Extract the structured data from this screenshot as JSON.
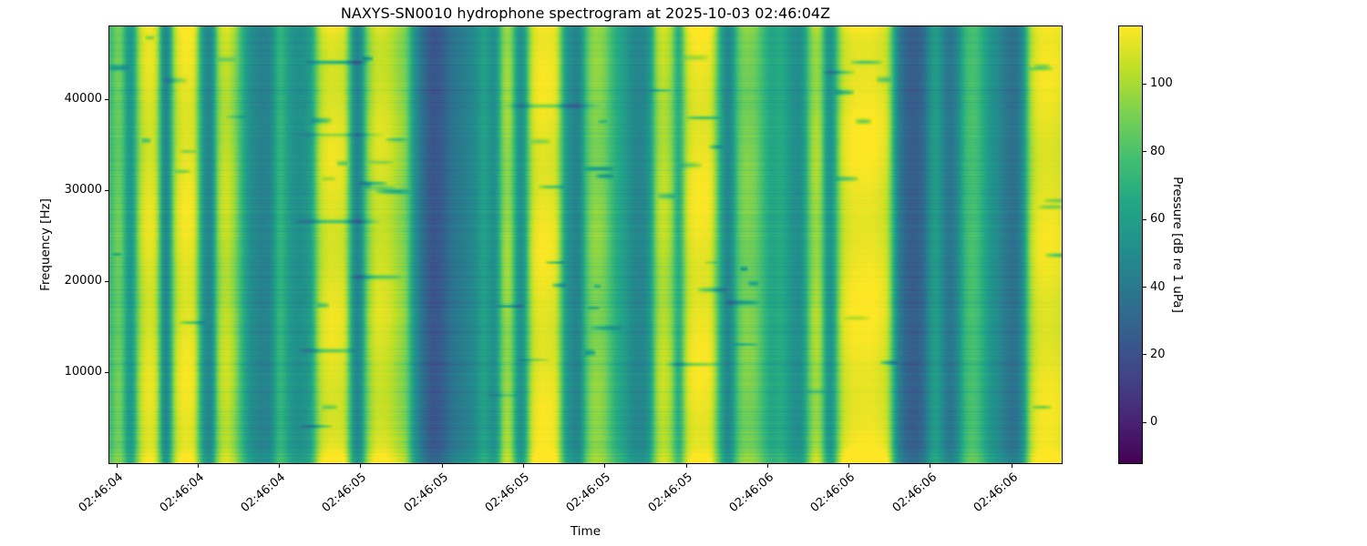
{
  "chart_data": {
    "type": "heatmap",
    "subtype": "spectrogram",
    "title": "NAXYS-SN0010 hydrophone spectrogram at 2025-10-03 02:46:04Z",
    "xlabel": "Time",
    "ylabel": "Frequency [Hz]",
    "colorbar_label": "Pressure [dB re 1 uPa]",
    "ylim": [
      0,
      48000
    ],
    "clim": [
      -12,
      117
    ],
    "grid": false,
    "y_ticks": {
      "values": [
        10000,
        20000,
        30000,
        40000
      ],
      "labels": [
        "10000",
        "20000",
        "30000",
        "40000"
      ]
    },
    "x_ticks": {
      "fractions": [
        0.0077,
        0.0931,
        0.1786,
        0.264,
        0.3495,
        0.4349,
        0.5204,
        0.6058,
        0.6913,
        0.7767,
        0.8622,
        0.9477
      ],
      "labels": [
        "02:46:04",
        "02:46:04",
        "02:46:04",
        "02:46:05",
        "02:46:05",
        "02:46:05",
        "02:46:05",
        "02:46:05",
        "02:46:06",
        "02:46:06",
        "02:46:06",
        "02:46:06"
      ]
    },
    "colorbar_ticks": {
      "values": [
        0,
        20,
        40,
        60,
        80,
        100
      ],
      "labels": [
        "0",
        "20",
        "40",
        "60",
        "80",
        "100"
      ]
    },
    "colormap": {
      "name": "viridis",
      "stops": [
        {
          "pos": 0.0,
          "color": "#440154"
        },
        {
          "pos": 0.1,
          "color": "#482475"
        },
        {
          "pos": 0.2,
          "color": "#414487"
        },
        {
          "pos": 0.3,
          "color": "#355f8d"
        },
        {
          "pos": 0.4,
          "color": "#2a788e"
        },
        {
          "pos": 0.5,
          "color": "#21918c"
        },
        {
          "pos": 0.6,
          "color": "#22a884"
        },
        {
          "pos": 0.7,
          "color": "#44bf70"
        },
        {
          "pos": 0.8,
          "color": "#7ad151"
        },
        {
          "pos": 0.9,
          "color": "#bddf26"
        },
        {
          "pos": 1.0,
          "color": "#fde725"
        }
      ]
    },
    "time_envelope_db": [
      [
        0.0,
        72
      ],
      [
        0.007,
        90
      ],
      [
        0.013,
        88
      ],
      [
        0.018,
        58
      ],
      [
        0.024,
        52
      ],
      [
        0.031,
        102
      ],
      [
        0.04,
        113
      ],
      [
        0.05,
        108
      ],
      [
        0.056,
        46
      ],
      [
        0.061,
        40
      ],
      [
        0.068,
        104
      ],
      [
        0.078,
        115
      ],
      [
        0.09,
        112
      ],
      [
        0.097,
        56
      ],
      [
        0.103,
        47
      ],
      [
        0.108,
        42
      ],
      [
        0.113,
        96
      ],
      [
        0.122,
        108
      ],
      [
        0.131,
        98
      ],
      [
        0.138,
        74
      ],
      [
        0.147,
        52
      ],
      [
        0.158,
        45
      ],
      [
        0.17,
        46
      ],
      [
        0.176,
        72
      ],
      [
        0.181,
        75
      ],
      [
        0.187,
        60
      ],
      [
        0.195,
        52
      ],
      [
        0.205,
        53
      ],
      [
        0.213,
        62
      ],
      [
        0.22,
        105
      ],
      [
        0.231,
        113
      ],
      [
        0.248,
        110
      ],
      [
        0.256,
        50
      ],
      [
        0.263,
        42
      ],
      [
        0.271,
        95
      ],
      [
        0.28,
        110
      ],
      [
        0.292,
        108
      ],
      [
        0.3,
        102
      ],
      [
        0.306,
        96
      ],
      [
        0.312,
        93
      ],
      [
        0.318,
        60
      ],
      [
        0.324,
        45
      ],
      [
        0.331,
        32
      ],
      [
        0.339,
        22
      ],
      [
        0.349,
        26
      ],
      [
        0.357,
        36
      ],
      [
        0.366,
        41
      ],
      [
        0.376,
        45
      ],
      [
        0.386,
        52
      ],
      [
        0.393,
        66
      ],
      [
        0.4,
        53
      ],
      [
        0.407,
        51
      ],
      [
        0.413,
        96
      ],
      [
        0.421,
        101
      ],
      [
        0.428,
        56
      ],
      [
        0.435,
        49
      ],
      [
        0.443,
        108
      ],
      [
        0.453,
        115
      ],
      [
        0.47,
        112
      ],
      [
        0.479,
        56
      ],
      [
        0.487,
        48
      ],
      [
        0.494,
        43
      ],
      [
        0.501,
        82
      ],
      [
        0.509,
        96
      ],
      [
        0.52,
        91
      ],
      [
        0.531,
        69
      ],
      [
        0.541,
        61
      ],
      [
        0.549,
        49
      ],
      [
        0.559,
        46
      ],
      [
        0.568,
        54
      ],
      [
        0.575,
        100
      ],
      [
        0.583,
        106
      ],
      [
        0.591,
        96
      ],
      [
        0.598,
        56
      ],
      [
        0.606,
        108
      ],
      [
        0.616,
        115
      ],
      [
        0.633,
        113
      ],
      [
        0.645,
        52
      ],
      [
        0.652,
        43
      ],
      [
        0.661,
        86
      ],
      [
        0.669,
        93
      ],
      [
        0.679,
        89
      ],
      [
        0.689,
        71
      ],
      [
        0.696,
        63
      ],
      [
        0.706,
        69
      ],
      [
        0.713,
        59
      ],
      [
        0.721,
        51
      ],
      [
        0.729,
        53
      ],
      [
        0.738,
        99
      ],
      [
        0.747,
        101
      ],
      [
        0.753,
        56
      ],
      [
        0.759,
        49
      ],
      [
        0.769,
        108
      ],
      [
        0.781,
        115
      ],
      [
        0.801,
        116
      ],
      [
        0.818,
        109
      ],
      [
        0.827,
        48
      ],
      [
        0.836,
        30
      ],
      [
        0.846,
        26
      ],
      [
        0.856,
        33
      ],
      [
        0.863,
        56
      ],
      [
        0.869,
        63
      ],
      [
        0.876,
        46
      ],
      [
        0.883,
        37
      ],
      [
        0.891,
        46
      ],
      [
        0.899,
        76
      ],
      [
        0.909,
        81
      ],
      [
        0.916,
        71
      ],
      [
        0.926,
        54
      ],
      [
        0.933,
        51
      ],
      [
        0.943,
        39
      ],
      [
        0.953,
        36
      ],
      [
        0.961,
        52
      ],
      [
        0.967,
        101
      ],
      [
        0.976,
        113
      ],
      [
        0.989,
        114
      ],
      [
        1.0,
        111
      ]
    ],
    "texture": {
      "seed": 1337,
      "row_noise_db": 2.4,
      "dark_row_chance": 0.1,
      "notch_count": 64,
      "long_dash_count": 7,
      "bottom_boost_db": 9,
      "top_boost_db": 3
    },
    "colors": {
      "background": "#ffffff",
      "text": "#000000",
      "spine": "#000000"
    }
  }
}
